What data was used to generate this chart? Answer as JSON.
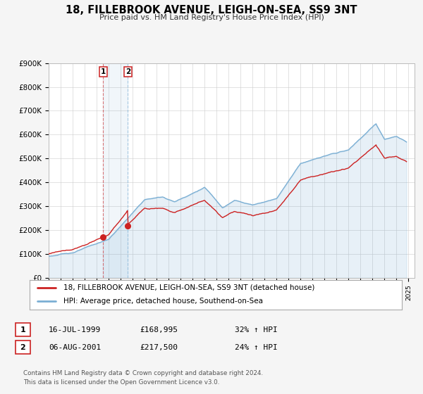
{
  "title": "18, FILLEBROOK AVENUE, LEIGH-ON-SEA, SS9 3NT",
  "subtitle": "Price paid vs. HM Land Registry's House Price Index (HPI)",
  "ylim": [
    0,
    900000
  ],
  "yticks": [
    0,
    100000,
    200000,
    300000,
    400000,
    500000,
    600000,
    700000,
    800000,
    900000
  ],
  "ytick_labels": [
    "£0",
    "£100K",
    "£200K",
    "£300K",
    "£400K",
    "£500K",
    "£600K",
    "£700K",
    "£800K",
    "£900K"
  ],
  "xlim_start": 1995.0,
  "xlim_end": 2025.5,
  "hpi_color": "#7bafd4",
  "price_color": "#cc2222",
  "bg_color": "#f5f5f5",
  "plot_bg_color": "#ffffff",
  "legend_label_price": "18, FILLEBROOK AVENUE, LEIGH-ON-SEA, SS9 3NT (detached house)",
  "legend_label_hpi": "HPI: Average price, detached house, Southend-on-Sea",
  "transaction1_num": "1",
  "transaction1_date": "16-JUL-1999",
  "transaction1_price": "£168,995",
  "transaction1_hpi": "32% ↑ HPI",
  "transaction1_year": 1999.54,
  "transaction1_value": 168995,
  "transaction2_num": "2",
  "transaction2_date": "06-AUG-2001",
  "transaction2_price": "£217,500",
  "transaction2_hpi": "24% ↑ HPI",
  "transaction2_year": 2001.6,
  "transaction2_value": 217500,
  "footer_line1": "Contains HM Land Registry data © Crown copyright and database right 2024.",
  "footer_line2": "This data is licensed under the Open Government Licence v3.0."
}
